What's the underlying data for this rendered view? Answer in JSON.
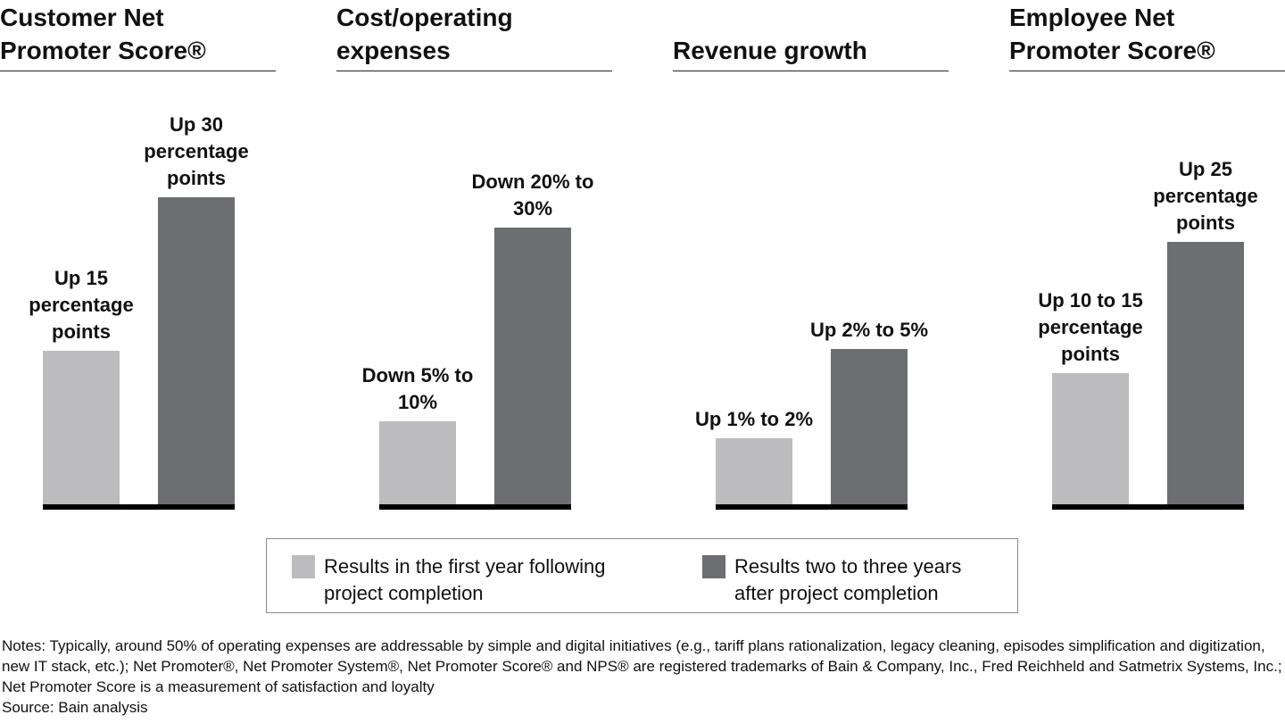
{
  "chart_data": [
    {
      "type": "bar",
      "title": "Customer Net Promoter Score®",
      "values": [
        15,
        30
      ],
      "value_labels": [
        "Up 15 percentage points",
        "Up 30 percentage points"
      ],
      "ylim": [
        0,
        39
      ]
    },
    {
      "type": "bar",
      "title": "Cost/operating expenses",
      "values": [
        7.5,
        25
      ],
      "value_labels": [
        "Down 5% to 10%",
        "Down 20% to 30%"
      ],
      "ylim": [
        0,
        36
      ]
    },
    {
      "type": "bar",
      "title": "Revenue growth",
      "values": [
        1.5,
        3.5
      ],
      "value_labels": [
        "Up 1% to 2%",
        "Up 2% to 5%"
      ],
      "ylim": [
        0,
        9
      ]
    },
    {
      "type": "bar",
      "title": "Employee Net Promoter Score®",
      "values": [
        12.5,
        25
      ],
      "value_labels": [
        "Up 10 to 15 percentage points",
        "Up 25 percentage points"
      ],
      "ylim": [
        0,
        38
      ]
    }
  ],
  "legend": {
    "items": [
      {
        "name": "Results in the first year following project completion",
        "color": "#bcbcbe"
      },
      {
        "name": "Results two to three years after project completion",
        "color": "#6d6e71"
      }
    ]
  },
  "notes": "Notes: Typically, around 50% of operating expenses are addressable by simple and digital initiatives (e.g., tariff plans rationalization, legacy cleaning, episodes simplification and digitization, new IT stack, etc.); Net Promoter®, Net Promoter System®, Net Promoter Score® and NPS® are registered trademarks of Bain & Company, Inc., Fred Reichheld and Satmetrix Systems, Inc.; Net Promoter Score is a measurement of satisfaction and loyalty",
  "source": "Source: Bain analysis"
}
